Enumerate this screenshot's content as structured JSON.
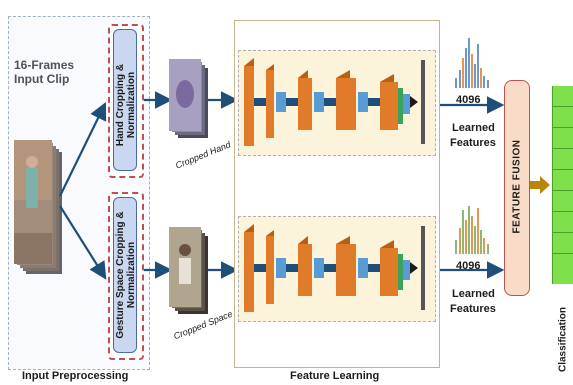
{
  "input_label": "16-Frames\nInput Clip",
  "preprocessing": {
    "hand_box": "Hand Cropping & Normalization",
    "gesture_box": "Gesture Space Cropping & Normalization",
    "caption": "Input Preprocessing"
  },
  "cropped_hand": "Cropped Hand",
  "cropped_space": "Cropped Space",
  "feature_learning_caption": "Feature Learning",
  "outputs": [
    {
      "dim": "4096",
      "line1": "Learned",
      "line2": "Features"
    },
    {
      "dim": "4096",
      "line1": "Learned",
      "line2": "Features"
    }
  ],
  "fusion_label": "FEATURE FUSION",
  "classification_label": "Classification",
  "colors": {
    "arrow": "#1f4e79",
    "cnn_block": "#e07b2a",
    "cnn_block_dark": "#b85e17",
    "conn_blue": "#5b9bd5",
    "green_layer": "#3aa35a",
    "fusion_fill": "#f9dcc8",
    "fusion_border": "#c0504d",
    "classifier": "#7ee04a"
  }
}
